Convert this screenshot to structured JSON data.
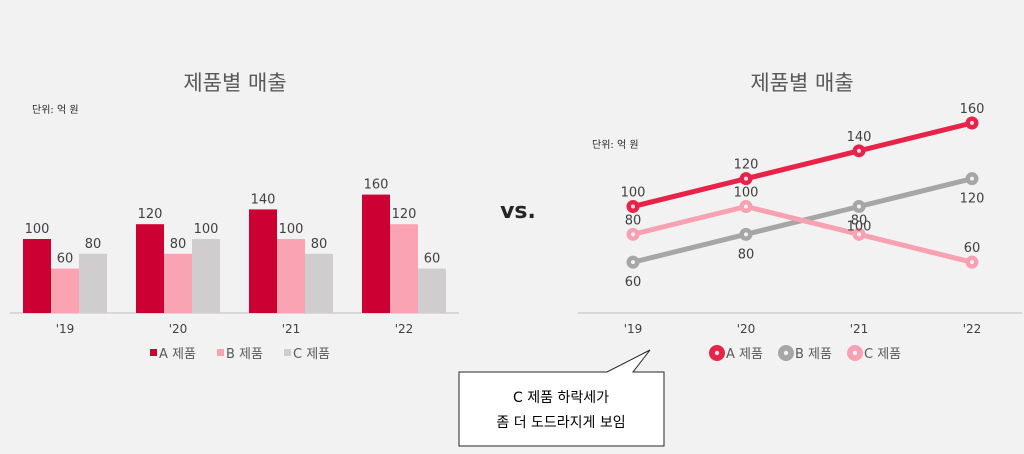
{
  "chart_data": [
    {
      "type": "bar",
      "title": "제품별 매출",
      "unit_label": "단위: 억 원",
      "categories": [
        "'19",
        "'20",
        "'21",
        "'22"
      ],
      "series": [
        {
          "name": "A 제품",
          "values": [
            100,
            120,
            140,
            160
          ],
          "color": "#cc0033"
        },
        {
          "name": "B 제품",
          "values": [
            60,
            80,
            100,
            120
          ],
          "color": "#f9a3b3"
        },
        {
          "name": "C 제품",
          "values": [
            80,
            100,
            80,
            60
          ],
          "color": "#cfcdcd"
        }
      ],
      "ylim": [
        0,
        160
      ],
      "grid": false,
      "legend": "bottom"
    },
    {
      "type": "line",
      "title": "제품별 매출",
      "unit_label": "단위: 억 원",
      "categories": [
        "'19",
        "'20",
        "'21",
        "'22"
      ],
      "series": [
        {
          "name": "A 제품",
          "values": [
            100,
            120,
            140,
            160
          ],
          "color": "#e8234a"
        },
        {
          "name": "B 제품",
          "values": [
            60,
            80,
            100,
            120
          ],
          "color": "#a6a6a6"
        },
        {
          "name": "C 제품",
          "values": [
            80,
            100,
            80,
            60
          ],
          "color": "#f7a1b2"
        }
      ],
      "ylim": [
        40,
        160
      ],
      "grid": false,
      "legend": "bottom"
    }
  ],
  "separator": "vs.",
  "callout": {
    "line1": "C 제품 하락세가",
    "line2": "좀 더 도드라지게 보임"
  }
}
